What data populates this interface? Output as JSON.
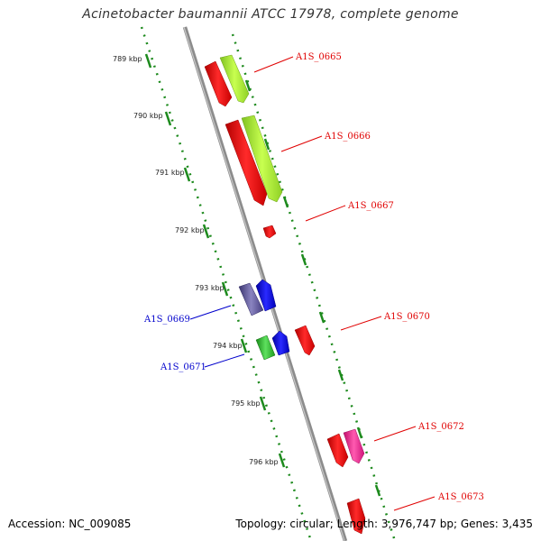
{
  "title": "Acinetobacter baumannii ATCC 17978, complete genome",
  "footer": {
    "accession": "Accession: NC_009085",
    "summary": "Topology: circular; Length: 3,976,747 bp; Genes: 3,435"
  },
  "colors": {
    "backbone": "#8c8c8c",
    "ticks": "#1d8a1d",
    "forward_label": "#e00000",
    "reverse_label": "#0000cc",
    "red": "#ff0000",
    "yellowgreen": "#b2ff2e",
    "slateblue": "#554e9a",
    "blue": "#0000ff",
    "green": "#2db82d",
    "magenta": "#ff1d93"
  },
  "ruler": [
    {
      "label": "789 kbp"
    },
    {
      "label": "790 kbp"
    },
    {
      "label": "791 kbp"
    },
    {
      "label": "792 kbp"
    },
    {
      "label": "793 kbp"
    },
    {
      "label": "794 kbp"
    },
    {
      "label": "795 kbp"
    },
    {
      "label": "796 kbp"
    }
  ],
  "gene_labels": [
    {
      "name": "A1S_0665",
      "strand": "forward"
    },
    {
      "name": "A1S_0666",
      "strand": "forward"
    },
    {
      "name": "A1S_0667",
      "strand": "forward"
    },
    {
      "name": "A1S_0670",
      "strand": "forward"
    },
    {
      "name": "A1S_0672",
      "strand": "forward"
    },
    {
      "name": "A1S_0673",
      "strand": "forward"
    },
    {
      "name": "A1S_0669",
      "strand": "reverse"
    },
    {
      "name": "A1S_0671",
      "strand": "reverse"
    }
  ]
}
